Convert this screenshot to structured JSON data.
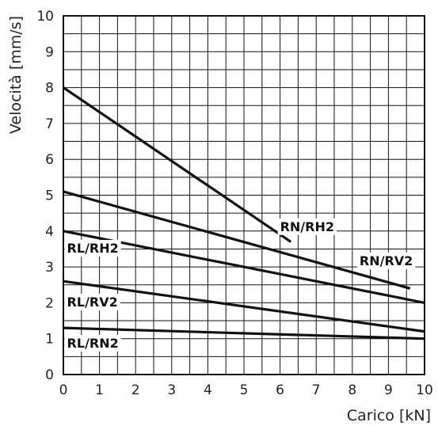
{
  "chart_data": {
    "type": "line",
    "title": "",
    "xlabel": "Carico [kN]",
    "ylabel": "Velocità [mm/s]",
    "xlim": [
      0,
      10
    ],
    "ylim": [
      0,
      10
    ],
    "grid": true,
    "grid_step": 0.5,
    "legend": "inline labels",
    "xticks": [
      "0",
      "1",
      "2",
      "3",
      "4",
      "5",
      "6",
      "7",
      "8",
      "9",
      "10"
    ],
    "yticks": [
      "0",
      "1",
      "2",
      "3",
      "4",
      "5",
      "6",
      "7",
      "8",
      "9",
      "10"
    ],
    "series": [
      {
        "name": "RN/RH2",
        "x": [
          0,
          6.3
        ],
        "y": [
          8.0,
          3.7
        ]
      },
      {
        "name": "RN/RV2",
        "x": [
          0,
          9.6
        ],
        "y": [
          5.1,
          2.4
        ]
      },
      {
        "name": "RL/RH2",
        "x": [
          0,
          10
        ],
        "y": [
          4.0,
          2.0
        ]
      },
      {
        "name": "RL/RV2",
        "x": [
          0,
          10
        ],
        "y": [
          2.6,
          1.2
        ]
      },
      {
        "name": "RL/RN2",
        "x": [
          0,
          10
        ],
        "y": [
          1.3,
          1.0
        ]
      }
    ],
    "annotations": [
      {
        "series": "RN/RH2",
        "text": "RN/RH2",
        "x": 6.0,
        "y": 4.0
      },
      {
        "series": "RN/RV2",
        "text": "RN/RV2",
        "x": 8.2,
        "y": 3.05
      },
      {
        "series": "RL/RH2",
        "text": "RL/RH2",
        "x": 0.1,
        "y": 3.4
      },
      {
        "series": "RL/RV2",
        "text": "RL/RV2",
        "x": 0.1,
        "y": 1.9
      },
      {
        "series": "RL/RN2",
        "text": "RL/RN2",
        "x": 0.1,
        "y": 0.75
      }
    ]
  }
}
